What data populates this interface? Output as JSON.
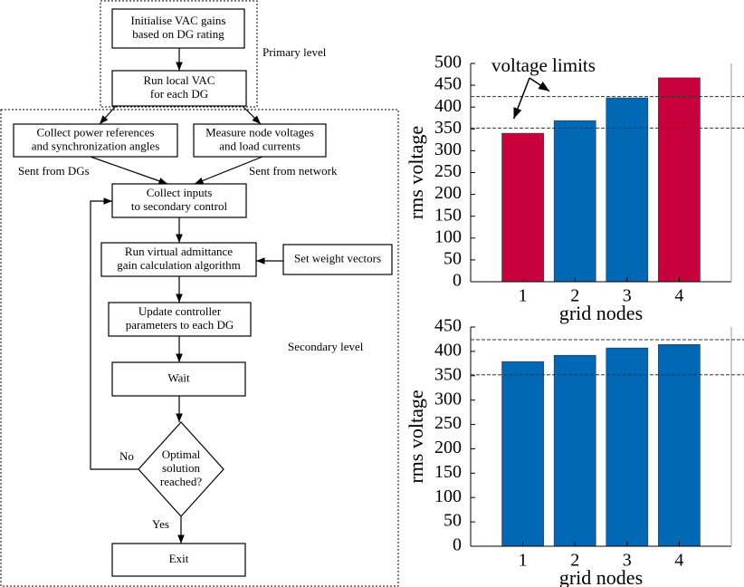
{
  "flowchart": {
    "nodes": [
      {
        "lines": [
          "Initialise VAC gains",
          "based on DG rating"
        ]
      },
      {
        "lines": [
          "Run local VAC",
          "for each DG"
        ]
      },
      {
        "lines": [
          "Collect power references",
          "and synchronization angles"
        ]
      },
      {
        "lines": [
          "Measure node voltages",
          "and load currents"
        ]
      },
      {
        "lines": [
          "Collect inputs",
          "to secondary control"
        ]
      },
      {
        "lines": [
          "Run virtual admittance",
          "gain calculation algorithm"
        ]
      },
      {
        "lines": [
          "Set weight vectors"
        ]
      },
      {
        "lines": [
          "Update controller",
          "parameters to each DG"
        ]
      },
      {
        "lines": [
          "Wait"
        ]
      },
      {
        "lines": [
          "Optimal",
          "solution",
          "reached?"
        ]
      },
      {
        "lines": [
          "Exit"
        ]
      }
    ],
    "labels": [
      "Primary level",
      "Sent from DGs",
      "Sent from network",
      "Secondary level",
      "No",
      "Yes"
    ]
  },
  "chart_data": [
    {
      "type": "bar",
      "x": [
        1,
        2,
        3,
        4
      ],
      "values": [
        340,
        369,
        421,
        467
      ],
      "colors": [
        "#c8003c",
        "#0068b4",
        "#0068b4",
        "#c8003c"
      ],
      "xlim": [
        0,
        5
      ],
      "xticks": [
        1,
        2,
        3,
        4
      ],
      "ylim": [
        0,
        500
      ],
      "yticks": [
        0,
        50,
        100,
        150,
        200,
        250,
        300,
        350,
        400,
        450,
        500
      ],
      "limits": [
        352,
        424
      ],
      "xlabel": "grid nodes",
      "ylabel": "rms voltage",
      "annotation": "voltage limits"
    },
    {
      "type": "bar",
      "x": [
        1,
        2,
        3,
        4
      ],
      "values": [
        379,
        392,
        407,
        414
      ],
      "colors": [
        "#0068b4",
        "#0068b4",
        "#0068b4",
        "#0068b4"
      ],
      "xlim": [
        0,
        5
      ],
      "xticks": [
        1,
        2,
        3,
        4
      ],
      "ylim": [
        0,
        450
      ],
      "yticks": [
        0,
        50,
        100,
        150,
        200,
        250,
        300,
        350,
        400,
        450
      ],
      "limits": [
        352,
        424
      ],
      "xlabel": "grid nodes",
      "ylabel": "rms voltage"
    }
  ]
}
